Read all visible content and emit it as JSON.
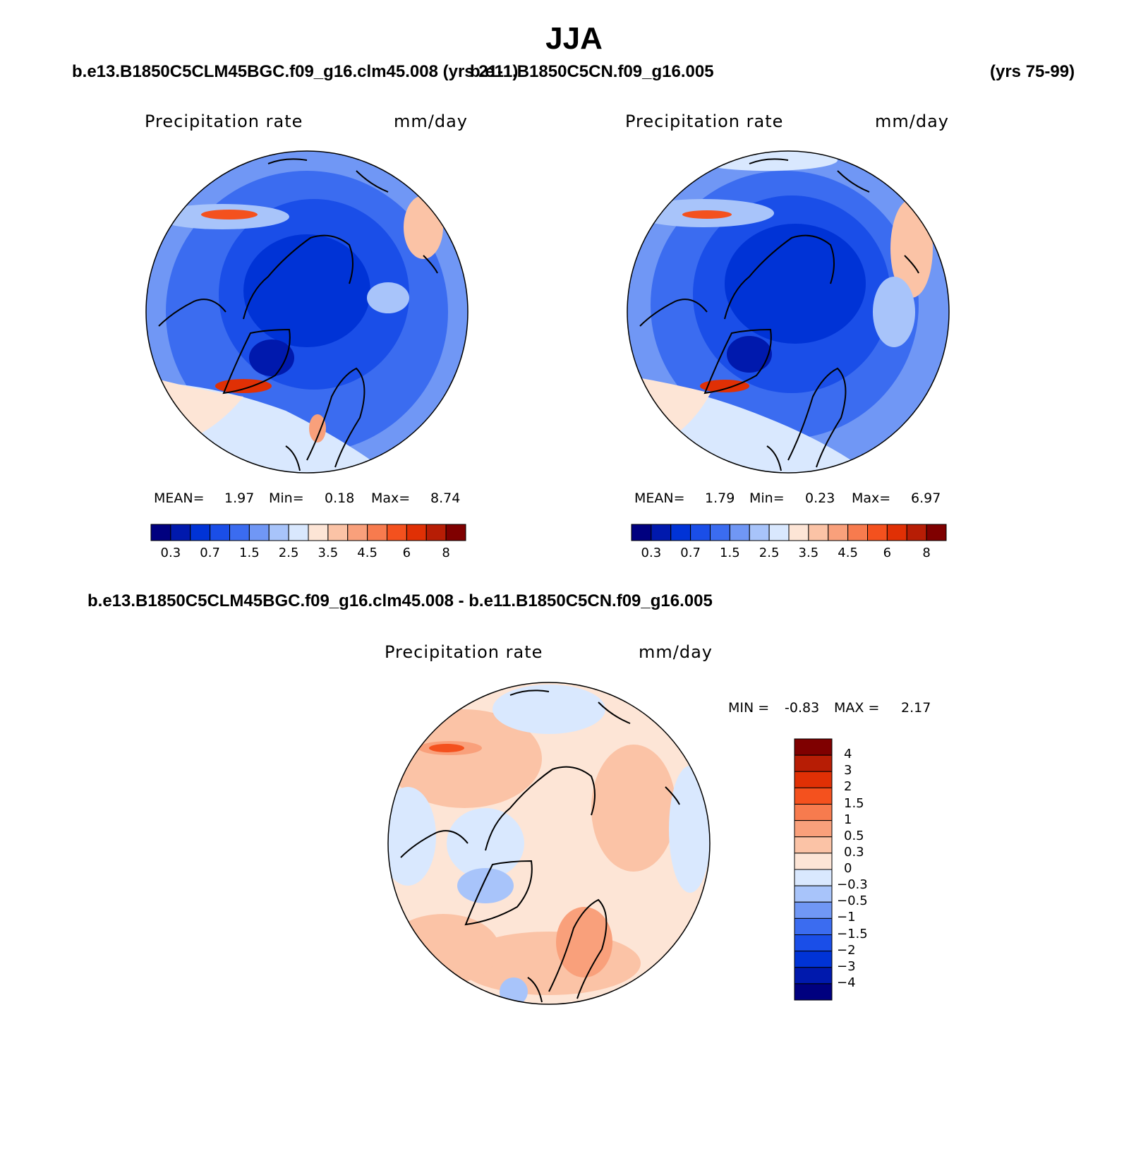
{
  "title": "JJA",
  "panels": [
    {
      "case_label": "b.e13.B1850C5CLM45BGC.f09_g16.clm45.008 (yrs 21-1)",
      "variable": "Precipitation rate",
      "units": "mm/day",
      "stats": {
        "mean_label": "MEAN=",
        "mean": "1.97",
        "min_label": "Min=",
        "min": "0.18",
        "max_label": "Max=",
        "max": "8.74"
      }
    },
    {
      "case_label": "b.e11.B1850C5CN.f09_g16.005",
      "years_label": "(yrs 75-99)",
      "variable": "Precipitation rate",
      "units": "mm/day",
      "stats": {
        "mean_label": "MEAN=",
        "mean": "1.79",
        "min_label": "Min=",
        "min": "0.23",
        "max_label": "Max=",
        "max": "6.97"
      }
    }
  ],
  "diff_panel": {
    "case_label": "b.e13.B1850C5CLM45BGC.f09_g16.clm45.008 - b.e11.B1850C5CN.f09_g16.005",
    "variable": "Precipitation rate",
    "units": "mm/day",
    "min_label": "MIN =",
    "min": "-0.83",
    "max_label": "MAX =",
    "max": "2.17"
  },
  "abs_colorbar": {
    "colors": [
      "#00007f",
      "#0019ad",
      "#0033d6",
      "#1a4ee8",
      "#3b6cf0",
      "#7097f5",
      "#a8c4fa",
      "#d9e8fe",
      "#fde5d6",
      "#fbc3a6",
      "#f9a07b",
      "#f77b4e",
      "#f4511e",
      "#e03005",
      "#b71d05",
      "#7f0000"
    ],
    "tick_labels": [
      "0.3",
      "0.7",
      "1.5",
      "2.5",
      "3.5",
      "4.5",
      "6",
      "8"
    ]
  },
  "diff_colorbar": {
    "colors": [
      "#7f0000",
      "#b71d05",
      "#e03005",
      "#f4511e",
      "#f77b4e",
      "#f9a07b",
      "#fbc3a6",
      "#fde5d6",
      "#d9e8fe",
      "#a8c4fa",
      "#7097f5",
      "#3b6cf0",
      "#1a4ee8",
      "#0033d6",
      "#0019ad",
      "#00007f"
    ],
    "tick_labels": [
      "4",
      "3",
      "2",
      "1.5",
      "1",
      "0.5",
      "0.3",
      "0",
      "−0.3",
      "−0.5",
      "−1",
      "−1.5",
      "−2",
      "−3",
      "−4"
    ]
  },
  "colors": {
    "land_outline": "#000000",
    "dark_blue": "#1a4ee8",
    "mid_blue": "#3b6cf0",
    "light_blue": "#7097f5",
    "pale_blue": "#a8c4fa",
    "very_pale_blue": "#d9e8fe",
    "pale_orange": "#fde5d6",
    "light_orange": "#fbc3a6",
    "orange": "#f9a07b",
    "red": "#e03005"
  }
}
